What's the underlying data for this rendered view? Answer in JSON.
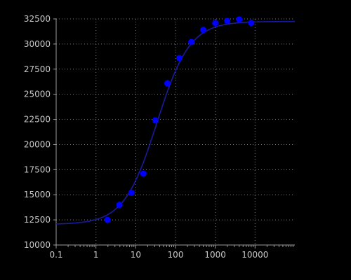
{
  "chart_data": {
    "type": "scatter",
    "xscale": "log",
    "xlim": [
      0.1,
      100000
    ],
    "ylim": [
      10000,
      32500
    ],
    "grid": true,
    "x_ticks": [
      0.1,
      1,
      10,
      100,
      1000,
      10000
    ],
    "x_tick_labels": [
      "0.1",
      "1",
      "10",
      "100",
      "1000",
      "10000"
    ],
    "y_ticks": [
      10000,
      12500,
      15000,
      17500,
      20000,
      22500,
      25000,
      27500,
      30000,
      32500
    ],
    "y_tick_labels": [
      "10000",
      "12500",
      "15000",
      "17500",
      "20000",
      "22500",
      "25000",
      "27500",
      "30000",
      "32500"
    ],
    "points": {
      "x": [
        1.95,
        3.9,
        7.8,
        15.6,
        31.25,
        62.5,
        125,
        250,
        500,
        1000,
        2000,
        4000,
        8000
      ],
      "y": [
        12500,
        14000,
        15200,
        17100,
        22400,
        26100,
        28600,
        30200,
        31400,
        32100,
        32300,
        32450,
        32100
      ]
    },
    "fit_curve": {
      "type": "4PL",
      "bottom": 12050,
      "top": 32250,
      "ec50": 34,
      "hill": 1.05
    },
    "colors": {
      "background": "#000000",
      "points": "#0000ff",
      "curve": "#1a1aa0",
      "grid": "#7a7a7a",
      "axis": "#9a9a9a",
      "tick_labels": "#c8c8c8"
    }
  }
}
